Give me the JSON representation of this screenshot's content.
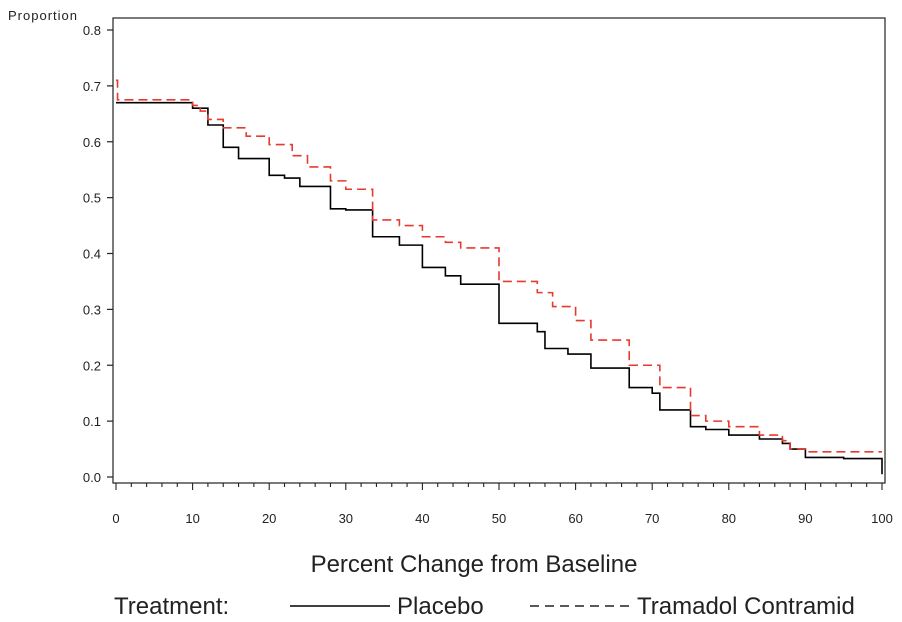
{
  "chart_data": {
    "type": "line",
    "ylabel": "Proportion",
    "xlabel": "Percent Change from Baseline",
    "xlim": [
      0,
      100
    ],
    "ylim": [
      0,
      0.8
    ],
    "x_ticks": [
      0,
      10,
      20,
      30,
      40,
      50,
      60,
      70,
      80,
      90,
      100
    ],
    "y_ticks": [
      0.0,
      0.1,
      0.2,
      0.3,
      0.4,
      0.5,
      0.6,
      0.7,
      0.8
    ],
    "y_tick_labels": [
      "0.0",
      "0.1",
      "0.2",
      "0.3",
      "0.4",
      "0.5",
      "0.6",
      "0.7",
      "0.8"
    ],
    "grid": false,
    "legend": {
      "title": "Treatment:",
      "position": "bottom"
    },
    "series": [
      {
        "name": "Placebo",
        "style": "solid",
        "color": "#000000",
        "step": true,
        "points": [
          [
            0,
            0.67
          ],
          [
            10,
            0.66
          ],
          [
            12,
            0.63
          ],
          [
            14,
            0.59
          ],
          [
            16,
            0.57
          ],
          [
            20,
            0.54
          ],
          [
            22,
            0.535
          ],
          [
            24,
            0.52
          ],
          [
            28,
            0.48
          ],
          [
            30,
            0.478
          ],
          [
            33.5,
            0.43
          ],
          [
            37,
            0.415
          ],
          [
            40,
            0.375
          ],
          [
            43,
            0.36
          ],
          [
            45,
            0.345
          ],
          [
            50,
            0.275
          ],
          [
            55,
            0.26
          ],
          [
            56,
            0.23
          ],
          [
            59,
            0.22
          ],
          [
            62,
            0.195
          ],
          [
            67,
            0.16
          ],
          [
            70,
            0.15
          ],
          [
            71,
            0.12
          ],
          [
            75,
            0.09
          ],
          [
            77,
            0.085
          ],
          [
            80,
            0.075
          ],
          [
            84,
            0.068
          ],
          [
            87,
            0.06
          ],
          [
            88,
            0.05
          ],
          [
            90,
            0.035
          ],
          [
            95,
            0.033
          ],
          [
            99.5,
            0.033
          ],
          [
            100,
            0.005
          ]
        ]
      },
      {
        "name": "Tramadol Contramid",
        "style": "dashed",
        "color": "#e8392f",
        "step": true,
        "points": [
          [
            0,
            0.71
          ],
          [
            0.2,
            0.675
          ],
          [
            10,
            0.665
          ],
          [
            11,
            0.655
          ],
          [
            12,
            0.64
          ],
          [
            14,
            0.625
          ],
          [
            17,
            0.61
          ],
          [
            20,
            0.595
          ],
          [
            23,
            0.575
          ],
          [
            25,
            0.555
          ],
          [
            28,
            0.53
          ],
          [
            30,
            0.515
          ],
          [
            33.5,
            0.46
          ],
          [
            37,
            0.45
          ],
          [
            40,
            0.43
          ],
          [
            43,
            0.42
          ],
          [
            45,
            0.41
          ],
          [
            50,
            0.35
          ],
          [
            55,
            0.33
          ],
          [
            57,
            0.305
          ],
          [
            60,
            0.28
          ],
          [
            62,
            0.245
          ],
          [
            67,
            0.2
          ],
          [
            71,
            0.16
          ],
          [
            75,
            0.11
          ],
          [
            77,
            0.1
          ],
          [
            80,
            0.09
          ],
          [
            84,
            0.075
          ],
          [
            87,
            0.065
          ],
          [
            88,
            0.05
          ],
          [
            90,
            0.045
          ],
          [
            100,
            0.045
          ]
        ]
      }
    ]
  }
}
